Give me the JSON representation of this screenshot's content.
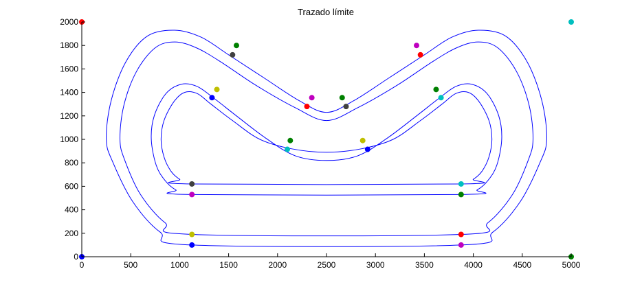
{
  "chart_data": {
    "type": "line",
    "title": "Trazado límite",
    "xlabel": "",
    "ylabel": "",
    "xlim": [
      0,
      5000
    ],
    "ylim": [
      0,
      2000
    ],
    "xticks": [
      0,
      500,
      1000,
      1500,
      2000,
      2500,
      3000,
      3500,
      4000,
      4500,
      5000
    ],
    "yticks": [
      0,
      200,
      400,
      600,
      800,
      1000,
      1200,
      1400,
      1600,
      1800,
      2000
    ],
    "grid": false,
    "track_color": "#0000ff",
    "series": [
      {
        "color": "#0000ff",
        "points": [
          [
            1125,
            100
          ],
          [
            3875,
            100
          ],
          [
            4200,
            210
          ],
          [
            4480,
            470
          ],
          [
            4680,
            800
          ],
          [
            4750,
            1000
          ],
          [
            4700,
            1330
          ],
          [
            4550,
            1660
          ],
          [
            4330,
            1880
          ],
          [
            4050,
            1930
          ],
          [
            3780,
            1870
          ],
          [
            3500,
            1720
          ],
          [
            3150,
            1530
          ],
          [
            2780,
            1330
          ],
          [
            2500,
            1230
          ],
          [
            2220,
            1330
          ],
          [
            1850,
            1530
          ],
          [
            1500,
            1720
          ],
          [
            1220,
            1870
          ],
          [
            950,
            1930
          ],
          [
            670,
            1880
          ],
          [
            450,
            1660
          ],
          [
            300,
            1330
          ],
          [
            250,
            1000
          ],
          [
            320,
            800
          ],
          [
            520,
            470
          ],
          [
            800,
            210
          ],
          [
            1125,
            100
          ]
        ]
      },
      {
        "color": "#0000ff",
        "points": [
          [
            1125,
            190
          ],
          [
            3875,
            190
          ],
          [
            4150,
            290
          ],
          [
            4400,
            530
          ],
          [
            4560,
            820
          ],
          [
            4610,
            1000
          ],
          [
            4570,
            1290
          ],
          [
            4440,
            1580
          ],
          [
            4250,
            1780
          ],
          [
            4050,
            1830
          ],
          [
            3830,
            1780
          ],
          [
            3580,
            1660
          ],
          [
            3220,
            1460
          ],
          [
            2820,
            1270
          ],
          [
            2500,
            1160
          ],
          [
            2180,
            1270
          ],
          [
            1780,
            1460
          ],
          [
            1420,
            1660
          ],
          [
            1170,
            1780
          ],
          [
            950,
            1830
          ],
          [
            750,
            1780
          ],
          [
            560,
            1580
          ],
          [
            430,
            1290
          ],
          [
            390,
            1000
          ],
          [
            440,
            820
          ],
          [
            600,
            530
          ],
          [
            850,
            290
          ],
          [
            1125,
            190
          ]
        ]
      },
      {
        "color": "#0000ff",
        "points": [
          [
            1125,
            530
          ],
          [
            3875,
            530
          ],
          [
            4040,
            570
          ],
          [
            4150,
            650
          ],
          [
            4240,
            780
          ],
          [
            4290,
            1000
          ],
          [
            4260,
            1200
          ],
          [
            4140,
            1390
          ],
          [
            3980,
            1470
          ],
          [
            3820,
            1450
          ],
          [
            3650,
            1350
          ],
          [
            3420,
            1200
          ],
          [
            3120,
            1010
          ],
          [
            2820,
            860
          ],
          [
            2500,
            820
          ],
          [
            2180,
            860
          ],
          [
            1880,
            1010
          ],
          [
            1580,
            1200
          ],
          [
            1350,
            1350
          ],
          [
            1180,
            1450
          ],
          [
            1020,
            1470
          ],
          [
            860,
            1390
          ],
          [
            740,
            1200
          ],
          [
            710,
            1000
          ],
          [
            760,
            780
          ],
          [
            850,
            650
          ],
          [
            960,
            570
          ],
          [
            1125,
            530
          ]
        ]
      },
      {
        "color": "#0000ff",
        "points": [
          [
            1125,
            620
          ],
          [
            3875,
            620
          ],
          [
            4000,
            660
          ],
          [
            4090,
            730
          ],
          [
            4160,
            850
          ],
          [
            4190,
            1000
          ],
          [
            4160,
            1160
          ],
          [
            4060,
            1320
          ],
          [
            3950,
            1400
          ],
          [
            3820,
            1390
          ],
          [
            3680,
            1300
          ],
          [
            3460,
            1160
          ],
          [
            3180,
            1000
          ],
          [
            2860,
            920
          ],
          [
            2500,
            890
          ],
          [
            2140,
            920
          ],
          [
            1820,
            1000
          ],
          [
            1540,
            1160
          ],
          [
            1320,
            1300
          ],
          [
            1180,
            1390
          ],
          [
            1050,
            1400
          ],
          [
            940,
            1320
          ],
          [
            840,
            1160
          ],
          [
            810,
            1000
          ],
          [
            840,
            850
          ],
          [
            910,
            730
          ],
          [
            1000,
            660
          ],
          [
            1125,
            620
          ]
        ]
      }
    ],
    "markers": [
      {
        "x": 0,
        "y": 2000,
        "color": "#ff0000"
      },
      {
        "x": 0,
        "y": 0,
        "color": "#0000ff"
      },
      {
        "x": 5000,
        "y": 2000,
        "color": "#00bfbf"
      },
      {
        "x": 5000,
        "y": 0,
        "color": "#008000"
      },
      {
        "x": 1125,
        "y": 100,
        "color": "#0000ff"
      },
      {
        "x": 3875,
        "y": 100,
        "color": "#bf00bf"
      },
      {
        "x": 1125,
        "y": 190,
        "color": "#bfbf00"
      },
      {
        "x": 3875,
        "y": 190,
        "color": "#ff0000"
      },
      {
        "x": 1125,
        "y": 530,
        "color": "#bf00bf"
      },
      {
        "x": 3875,
        "y": 530,
        "color": "#008000"
      },
      {
        "x": 1125,
        "y": 620,
        "color": "#404040"
      },
      {
        "x": 3875,
        "y": 620,
        "color": "#00bfbf"
      },
      {
        "x": 1580,
        "y": 1800,
        "color": "#008000"
      },
      {
        "x": 1540,
        "y": 1720,
        "color": "#404040"
      },
      {
        "x": 2350,
        "y": 1355,
        "color": "#bf00bf"
      },
      {
        "x": 2300,
        "y": 1280,
        "color": "#ff0000"
      },
      {
        "x": 2660,
        "y": 1355,
        "color": "#008000"
      },
      {
        "x": 2700,
        "y": 1280,
        "color": "#404040"
      },
      {
        "x": 3420,
        "y": 1800,
        "color": "#bf00bf"
      },
      {
        "x": 3460,
        "y": 1720,
        "color": "#ff0000"
      },
      {
        "x": 1380,
        "y": 1425,
        "color": "#bfbf00"
      },
      {
        "x": 1330,
        "y": 1355,
        "color": "#0000ff"
      },
      {
        "x": 2130,
        "y": 990,
        "color": "#008000"
      },
      {
        "x": 2100,
        "y": 915,
        "color": "#00bfbf"
      },
      {
        "x": 2870,
        "y": 990,
        "color": "#bfbf00"
      },
      {
        "x": 2920,
        "y": 915,
        "color": "#0000ff"
      },
      {
        "x": 3620,
        "y": 1425,
        "color": "#008000"
      },
      {
        "x": 3670,
        "y": 1355,
        "color": "#00bfbf"
      }
    ]
  }
}
